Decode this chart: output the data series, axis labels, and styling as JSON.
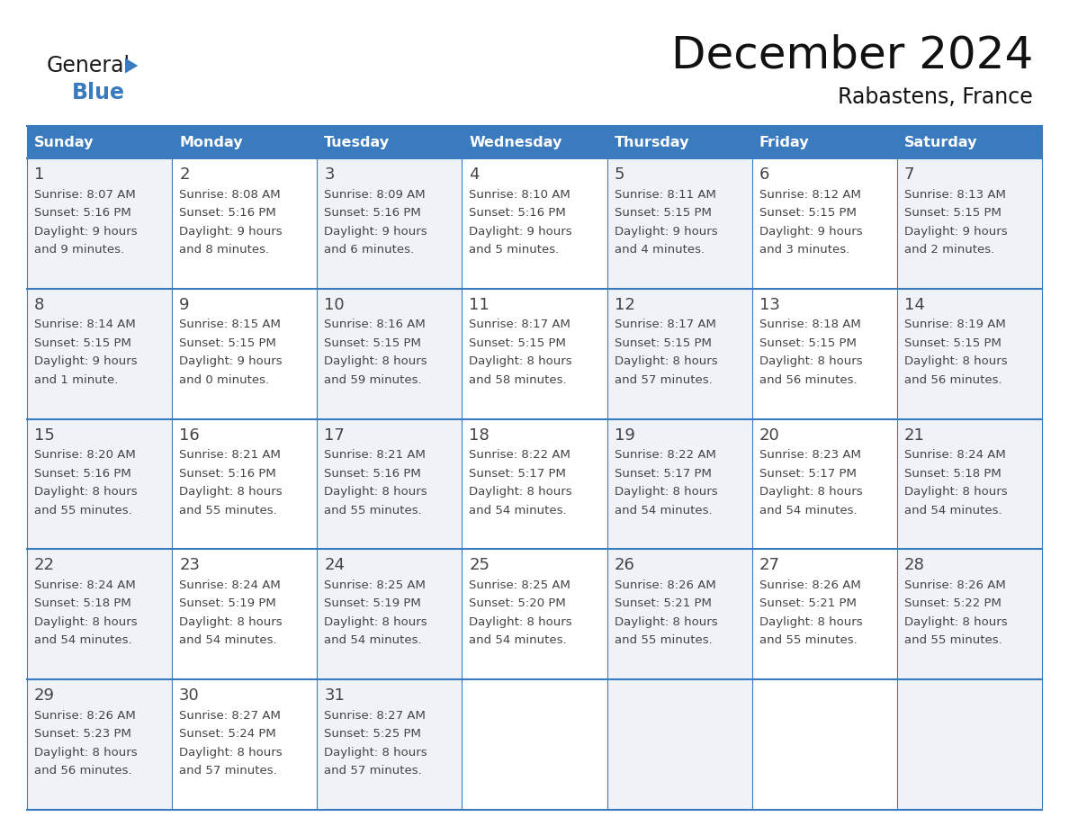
{
  "title": "December 2024",
  "subtitle": "Rabastens, France",
  "days_of_week": [
    "Sunday",
    "Monday",
    "Tuesday",
    "Wednesday",
    "Thursday",
    "Friday",
    "Saturday"
  ],
  "header_bg": "#3a7abf",
  "header_text": "#ffffff",
  "row_bg_odd": "#eff3f8",
  "row_bg_even": "#ffffff",
  "border_color": "#3a7abf",
  "text_color": "#444444",
  "title_color": "#111111",
  "logo_general_color": "#1a1a1a",
  "logo_blue_color": "#3a7abf",
  "weeks": [
    {
      "days": [
        {
          "day": 1,
          "sunrise": "8:07 AM",
          "sunset": "5:16 PM",
          "daylight_hours": 9,
          "daylight_minutes": 9
        },
        {
          "day": 2,
          "sunrise": "8:08 AM",
          "sunset": "5:16 PM",
          "daylight_hours": 9,
          "daylight_minutes": 8
        },
        {
          "day": 3,
          "sunrise": "8:09 AM",
          "sunset": "5:16 PM",
          "daylight_hours": 9,
          "daylight_minutes": 6
        },
        {
          "day": 4,
          "sunrise": "8:10 AM",
          "sunset": "5:16 PM",
          "daylight_hours": 9,
          "daylight_minutes": 5
        },
        {
          "day": 5,
          "sunrise": "8:11 AM",
          "sunset": "5:15 PM",
          "daylight_hours": 9,
          "daylight_minutes": 4
        },
        {
          "day": 6,
          "sunrise": "8:12 AM",
          "sunset": "5:15 PM",
          "daylight_hours": 9,
          "daylight_minutes": 3
        },
        {
          "day": 7,
          "sunrise": "8:13 AM",
          "sunset": "5:15 PM",
          "daylight_hours": 9,
          "daylight_minutes": 2
        }
      ]
    },
    {
      "days": [
        {
          "day": 8,
          "sunrise": "8:14 AM",
          "sunset": "5:15 PM",
          "daylight_hours": 9,
          "daylight_minutes": 1
        },
        {
          "day": 9,
          "sunrise": "8:15 AM",
          "sunset": "5:15 PM",
          "daylight_hours": 9,
          "daylight_minutes": 0
        },
        {
          "day": 10,
          "sunrise": "8:16 AM",
          "sunset": "5:15 PM",
          "daylight_hours": 8,
          "daylight_minutes": 59
        },
        {
          "day": 11,
          "sunrise": "8:17 AM",
          "sunset": "5:15 PM",
          "daylight_hours": 8,
          "daylight_minutes": 58
        },
        {
          "day": 12,
          "sunrise": "8:17 AM",
          "sunset": "5:15 PM",
          "daylight_hours": 8,
          "daylight_minutes": 57
        },
        {
          "day": 13,
          "sunrise": "8:18 AM",
          "sunset": "5:15 PM",
          "daylight_hours": 8,
          "daylight_minutes": 56
        },
        {
          "day": 14,
          "sunrise": "8:19 AM",
          "sunset": "5:15 PM",
          "daylight_hours": 8,
          "daylight_minutes": 56
        }
      ]
    },
    {
      "days": [
        {
          "day": 15,
          "sunrise": "8:20 AM",
          "sunset": "5:16 PM",
          "daylight_hours": 8,
          "daylight_minutes": 55
        },
        {
          "day": 16,
          "sunrise": "8:21 AM",
          "sunset": "5:16 PM",
          "daylight_hours": 8,
          "daylight_minutes": 55
        },
        {
          "day": 17,
          "sunrise": "8:21 AM",
          "sunset": "5:16 PM",
          "daylight_hours": 8,
          "daylight_minutes": 55
        },
        {
          "day": 18,
          "sunrise": "8:22 AM",
          "sunset": "5:17 PM",
          "daylight_hours": 8,
          "daylight_minutes": 54
        },
        {
          "day": 19,
          "sunrise": "8:22 AM",
          "sunset": "5:17 PM",
          "daylight_hours": 8,
          "daylight_minutes": 54
        },
        {
          "day": 20,
          "sunrise": "8:23 AM",
          "sunset": "5:17 PM",
          "daylight_hours": 8,
          "daylight_minutes": 54
        },
        {
          "day": 21,
          "sunrise": "8:24 AM",
          "sunset": "5:18 PM",
          "daylight_hours": 8,
          "daylight_minutes": 54
        }
      ]
    },
    {
      "days": [
        {
          "day": 22,
          "sunrise": "8:24 AM",
          "sunset": "5:18 PM",
          "daylight_hours": 8,
          "daylight_minutes": 54
        },
        {
          "day": 23,
          "sunrise": "8:24 AM",
          "sunset": "5:19 PM",
          "daylight_hours": 8,
          "daylight_minutes": 54
        },
        {
          "day": 24,
          "sunrise": "8:25 AM",
          "sunset": "5:19 PM",
          "daylight_hours": 8,
          "daylight_minutes": 54
        },
        {
          "day": 25,
          "sunrise": "8:25 AM",
          "sunset": "5:20 PM",
          "daylight_hours": 8,
          "daylight_minutes": 54
        },
        {
          "day": 26,
          "sunrise": "8:26 AM",
          "sunset": "5:21 PM",
          "daylight_hours": 8,
          "daylight_minutes": 55
        },
        {
          "day": 27,
          "sunrise": "8:26 AM",
          "sunset": "5:21 PM",
          "daylight_hours": 8,
          "daylight_minutes": 55
        },
        {
          "day": 28,
          "sunrise": "8:26 AM",
          "sunset": "5:22 PM",
          "daylight_hours": 8,
          "daylight_minutes": 55
        }
      ]
    },
    {
      "days": [
        {
          "day": 29,
          "sunrise": "8:26 AM",
          "sunset": "5:23 PM",
          "daylight_hours": 8,
          "daylight_minutes": 56
        },
        {
          "day": 30,
          "sunrise": "8:27 AM",
          "sunset": "5:24 PM",
          "daylight_hours": 8,
          "daylight_minutes": 57
        },
        {
          "day": 31,
          "sunrise": "8:27 AM",
          "sunset": "5:25 PM",
          "daylight_hours": 8,
          "daylight_minutes": 57
        },
        null,
        null,
        null,
        null
      ]
    }
  ]
}
